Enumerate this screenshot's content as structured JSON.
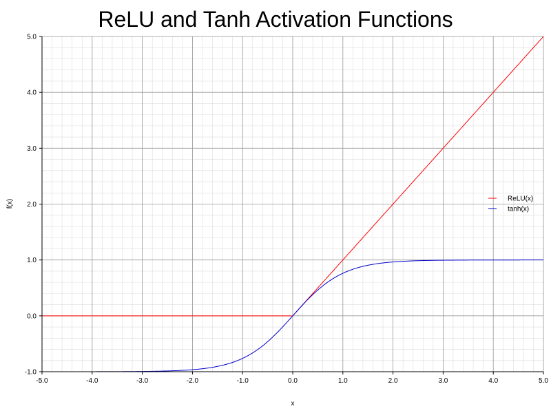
{
  "chart_data": {
    "type": "line",
    "title": "ReLU and Tanh Activation Functions",
    "xlabel": "x",
    "ylabel": "f(x)",
    "xlim": [
      -5.0,
      5.0
    ],
    "ylim": [
      -1.0,
      5.0
    ],
    "x_major_step": 1.0,
    "y_major_step": 1.0,
    "x_minor_step": 0.2,
    "y_minor_step": 0.2,
    "x_ticks": [
      "-5.0",
      "-4.0",
      "-3.0",
      "-2.0",
      "-1.0",
      "0.0",
      "1.0",
      "2.0",
      "3.0",
      "4.0",
      "5.0"
    ],
    "y_ticks": [
      "-1.0",
      "0.0",
      "1.0",
      "2.0",
      "3.0",
      "4.0",
      "5.0"
    ],
    "grid": true,
    "legend_position": "right",
    "series": [
      {
        "name": "ReLU(x)",
        "color": "#ff0000",
        "function": "relu",
        "x": [
          -5.0,
          0.0,
          5.0
        ],
        "y": [
          0.0,
          0.0,
          5.0
        ]
      },
      {
        "name": "tanh(x)",
        "color": "#0000cc",
        "function": "tanh",
        "x": [
          -5.0,
          -3.0,
          -2.0,
          -1.5,
          -1.0,
          -0.5,
          0.0,
          0.5,
          1.0,
          1.5,
          2.0,
          3.0,
          5.0
        ],
        "y": [
          -1.0,
          -0.995,
          -0.964,
          -0.905,
          -0.762,
          -0.462,
          0.0,
          0.462,
          0.762,
          0.905,
          0.964,
          0.995,
          1.0
        ]
      }
    ]
  }
}
